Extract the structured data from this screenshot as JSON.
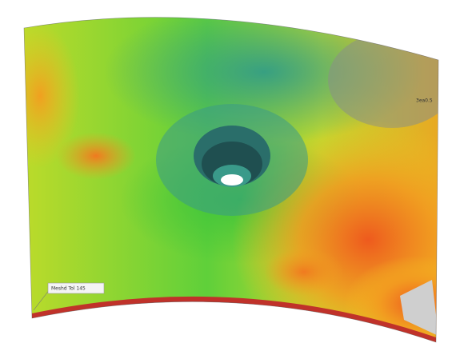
{
  "labels": {
    "callout": "Meshd Tol 145",
    "corner": "3ea0.5"
  }
}
